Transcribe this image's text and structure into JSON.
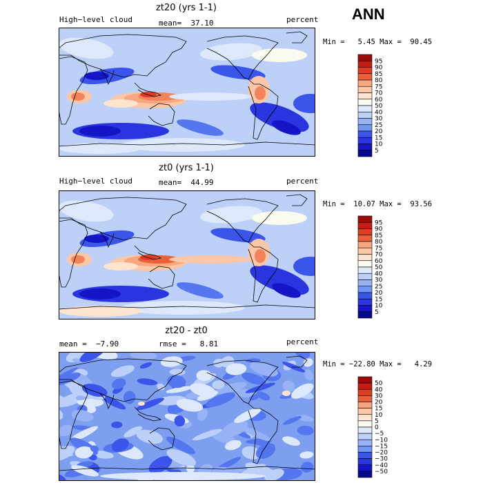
{
  "season": "ANN",
  "palette_abs": [
    "#08088c",
    "#1515c8",
    "#2a35e0",
    "#3b55ea",
    "#5476ee",
    "#7195f2",
    "#98b3f5",
    "#bcd0f8",
    "#dde8fb",
    "#fafaee",
    "#fde4cf",
    "#fbc7a6",
    "#f7a680",
    "#f2835d",
    "#e9603b",
    "#dc3d21",
    "#c31c12",
    "#9c0a0a"
  ],
  "levels_abs": [
    "95",
    "90",
    "85",
    "80",
    "75",
    "70",
    "60",
    "50",
    "40",
    "30",
    "25",
    "20",
    "15",
    "10",
    "5"
  ],
  "levels_diff": [
    "50",
    "40",
    "30",
    "20",
    "15",
    "10",
    "5",
    "0",
    "−5",
    "−10",
    "−15",
    "−20",
    "−30",
    "−40",
    "−50"
  ],
  "panels": [
    {
      "title": "zt20 (yrs 1-1)",
      "left_label": "High−level cloud",
      "center_label": "mean=  37.10",
      "right_label": "percent",
      "minmax": "Min =   5.45 Max =  90.45",
      "kind": "abs"
    },
    {
      "title": "zt0 (yrs 1-1)",
      "left_label": "High−level cloud",
      "center_label": "mean=  44.99",
      "right_label": "percent",
      "minmax": "Min =  10.07 Max =  93.56",
      "kind": "abs"
    },
    {
      "title": "zt20 - zt0",
      "left_label": "mean =  −7.90",
      "center_label": "rmse =   8.81",
      "right_label": "percent",
      "minmax": "Min = −22.80 Max =   4.29",
      "kind": "diff"
    }
  ]
}
